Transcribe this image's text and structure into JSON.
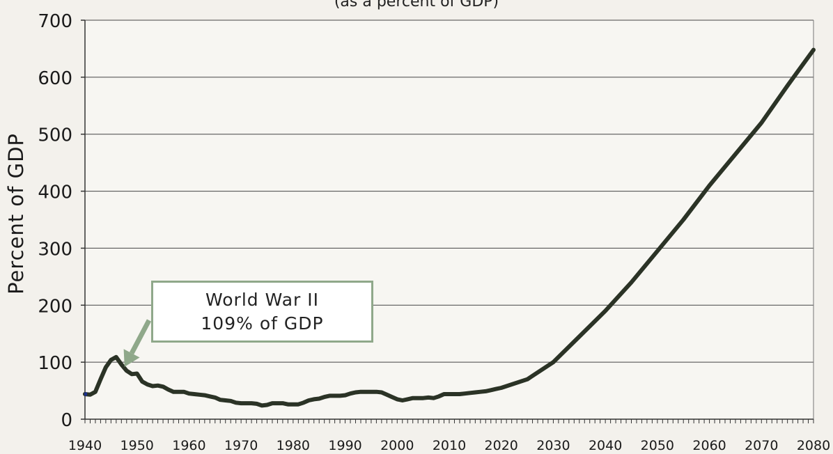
{
  "chart_data": {
    "type": "line",
    "title": "",
    "subtitle": "(as a percent of GDP)",
    "xlabel": "",
    "ylabel": "Percent of GDP",
    "xlim": [
      1940,
      2080
    ],
    "ylim": [
      0,
      700
    ],
    "grid": true,
    "x_ticks": [
      1940,
      1950,
      1960,
      1970,
      1980,
      1990,
      2000,
      2010,
      2020,
      2030,
      2040,
      2050,
      2060,
      2070,
      2080
    ],
    "y_ticks": [
      0,
      100,
      200,
      300,
      400,
      500,
      600,
      700
    ],
    "annotation": {
      "lines": [
        "World War II",
        "109% of GDP"
      ],
      "points_to": {
        "x": 1946,
        "y": 109
      }
    },
    "series": [
      {
        "color": "#2b3326",
        "x": [
          1940,
          1941,
          1942,
          1943,
          1944,
          1945,
          1946,
          1947,
          1948,
          1949,
          1950,
          1951,
          1952,
          1953,
          1954,
          1955,
          1956,
          1957,
          1958,
          1959,
          1960,
          1961,
          1962,
          1963,
          1964,
          1965,
          1966,
          1967,
          1968,
          1969,
          1970,
          1971,
          1972,
          1973,
          1974,
          1975,
          1976,
          1977,
          1978,
          1979,
          1980,
          1981,
          1982,
          1983,
          1984,
          1985,
          1986,
          1987,
          1988,
          1989,
          1990,
          1991,
          1992,
          1993,
          1994,
          1995,
          1996,
          1997,
          1998,
          1999,
          2000,
          2001,
          2002,
          2003,
          2004,
          2005,
          2006,
          2007,
          2008,
          2009,
          2010,
          2011,
          2012,
          2013,
          2014,
          2015,
          2016,
          2017,
          2018,
          2019,
          2020,
          2025,
          2030,
          2035,
          2040,
          2045,
          2050,
          2055,
          2060,
          2065,
          2070,
          2075,
          2080
        ],
        "values": [
          44,
          43,
          48,
          70,
          91,
          104,
          109,
          96,
          85,
          79,
          80,
          66,
          61,
          58,
          59,
          57,
          52,
          48,
          48,
          48,
          45,
          44,
          43,
          42,
          40,
          38,
          34,
          33,
          32,
          29,
          28,
          28,
          28,
          27,
          24,
          25,
          28,
          28,
          28,
          26,
          26,
          26,
          29,
          33,
          35,
          36,
          39,
          41,
          41,
          41,
          42,
          45,
          47,
          48,
          48,
          48,
          48,
          47,
          43,
          39,
          35,
          33,
          35,
          37,
          37,
          37,
          38,
          37,
          40,
          44,
          44,
          44,
          44,
          45,
          46,
          47,
          48,
          49,
          51,
          53,
          55,
          70,
          100,
          145,
          190,
          240,
          295,
          350,
          410,
          465,
          520,
          585,
          648
        ]
      }
    ]
  }
}
